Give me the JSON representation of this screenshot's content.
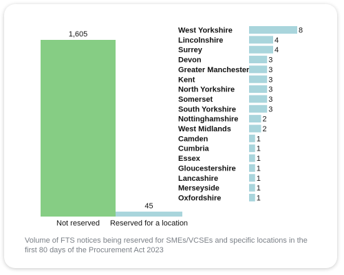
{
  "caption": "Volume of FTS notices being reserved for SMEs/VCSEs and specific locations in the first 80 days of the Procurement Act 2023",
  "colors": {
    "green": "#86cd84",
    "blue": "#a9d5dc",
    "text": "#111111",
    "caption": "#7a7f86"
  },
  "chart_data": [
    {
      "type": "bar",
      "orientation": "vertical",
      "categories": [
        "Not reserved",
        "Reserved for a location"
      ],
      "values": [
        1605,
        45
      ],
      "data_labels": [
        "1,605",
        "45"
      ],
      "colors": [
        "#86cd84",
        "#a9d5dc"
      ],
      "grid": false,
      "legend": false
    },
    {
      "type": "bar",
      "orientation": "horizontal",
      "categories": [
        "West Yorkshire",
        "Lincolnshire",
        "Surrey",
        "Devon",
        "Greater Manchester",
        "Kent",
        "North Yorkshire",
        "Somerset",
        "South Yorkshire",
        "Nottinghamshire",
        "West Midlands",
        "Camden",
        "Cumbria",
        "Essex",
        "Gloucestershire",
        "Lancashire",
        "Merseyside",
        "Oxfordshire"
      ],
      "values": [
        8,
        4,
        4,
        3,
        3,
        3,
        3,
        3,
        3,
        2,
        2,
        1,
        1,
        1,
        1,
        1,
        1,
        1
      ],
      "color": "#a9d5dc",
      "grid": false,
      "legend": false
    }
  ]
}
